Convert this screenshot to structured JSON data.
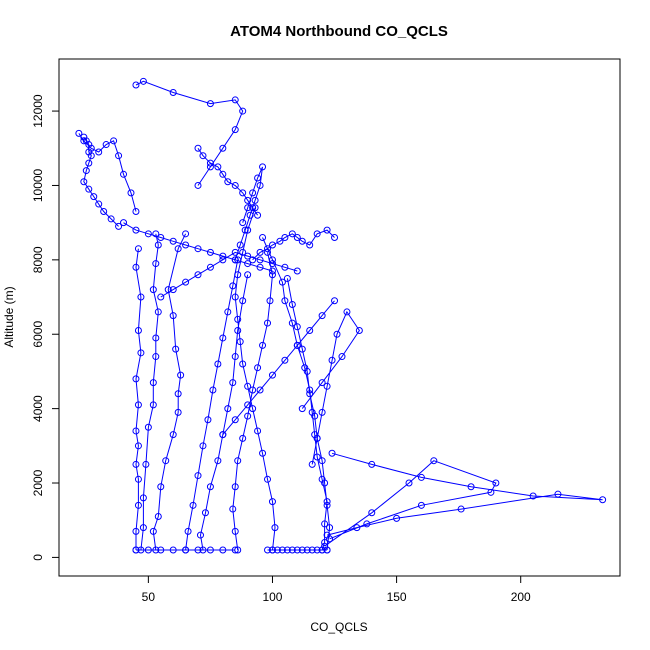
{
  "chart_data": {
    "type": "line",
    "title": "ATOM4 Northbound CO_QCLS",
    "xlabel": "CO_QCLS",
    "ylabel": "Altitude (m)",
    "xlim": [
      14,
      240
    ],
    "ylim": [
      -500,
      13400
    ],
    "xticks": [
      50,
      100,
      150,
      200
    ],
    "yticks": [
      0,
      2000,
      4000,
      6000,
      8000,
      10000,
      12000
    ],
    "grid": false,
    "series_style": "points connected by lines, open circles",
    "color": "#0000ff",
    "profiles": [
      {
        "x": [
          45,
          45,
          46,
          46,
          45,
          46,
          45,
          46,
          45,
          47,
          46,
          47,
          45,
          46
        ],
        "y": [
          200,
          700,
          1400,
          2100,
          2500,
          3000,
          3400,
          4100,
          4800,
          5500,
          6100,
          7000,
          7800,
          8300
        ]
      },
      {
        "x": [
          47,
          48,
          48,
          49,
          50,
          52,
          52,
          53,
          53,
          54,
          52,
          53,
          54,
          53
        ],
        "y": [
          200,
          800,
          1600,
          2500,
          3500,
          4100,
          4700,
          5400,
          5900,
          6600,
          7200,
          7900,
          8400,
          8700
        ]
      },
      {
        "x": [
          53,
          52,
          54,
          55,
          57,
          60,
          62,
          62,
          63,
          61,
          60,
          58,
          62,
          65
        ],
        "y": [
          200,
          700,
          1100,
          1900,
          2600,
          3300,
          3900,
          4400,
          4900,
          5600,
          6500,
          7200,
          8300,
          8700
        ]
      },
      {
        "x": [
          120,
          121,
          121,
          122,
          120,
          118,
          117,
          116,
          115,
          113,
          110,
          108,
          105,
          104,
          100,
          96
        ],
        "y": [
          200,
          400,
          900,
          1500,
          2100,
          2700,
          3300,
          3900,
          4500,
          5100,
          5700,
          6300,
          6900,
          7400,
          8000,
          8600
        ]
      },
      {
        "x": [
          122,
          123,
          122,
          121,
          120,
          118,
          117,
          115,
          114,
          112,
          110,
          108,
          106
        ],
        "y": [
          200,
          800,
          1400,
          2000,
          2600,
          3200,
          3800,
          4400,
          5000,
          5600,
          6200,
          6800,
          7500
        ]
      },
      {
        "x": [
          100,
          101,
          100,
          98,
          96,
          94,
          92,
          90,
          88,
          87,
          86,
          85,
          86,
          88,
          90,
          93
        ],
        "y": [
          200,
          800,
          1500,
          2100,
          2800,
          3400,
          4000,
          4600,
          5200,
          5800,
          6400,
          7000,
          7600,
          8200,
          8800,
          9400
        ]
      },
      {
        "x": [
          86,
          85,
          84,
          85,
          86,
          88,
          90,
          92,
          94,
          96,
          98,
          99,
          100,
          98
        ],
        "y": [
          200,
          700,
          1300,
          1900,
          2600,
          3200,
          3800,
          4500,
          5100,
          5700,
          6300,
          6900,
          7600,
          8200
        ]
      },
      {
        "x": [
          72,
          71,
          73,
          75,
          78,
          80,
          82,
          84,
          85,
          86,
          88,
          90
        ],
        "y": [
          200,
          600,
          1200,
          1900,
          2600,
          3300,
          4000,
          4700,
          5400,
          6100,
          6900,
          7600
        ]
      },
      {
        "x": [
          65,
          66,
          68,
          70,
          72,
          74,
          76,
          78,
          80,
          82,
          84,
          86
        ],
        "y": [
          200,
          700,
          1400,
          2200,
          3000,
          3700,
          4500,
          5200,
          5900,
          6600,
          7300,
          8000
        ]
      },
      {
        "x": [
          122,
          134,
          150,
          176,
          215,
          233,
          205,
          180,
          160,
          140,
          124
        ],
        "y": [
          600,
          800,
          1050,
          1300,
          1700,
          1550,
          1650,
          1900,
          2150,
          2500,
          2800
        ]
      },
      {
        "x": [
          121,
          140,
          155,
          165,
          190,
          188,
          160,
          138,
          123
        ],
        "y": [
          300,
          1200,
          2000,
          2600,
          2000,
          1750,
          1400,
          900,
          500
        ]
      },
      {
        "x": [
          116,
          118,
          120,
          122,
          124,
          126,
          130,
          135,
          128,
          120,
          112
        ],
        "y": [
          2500,
          3200,
          3900,
          4600,
          5300,
          6000,
          6600,
          6100,
          5400,
          4700,
          4000
        ]
      },
      {
        "x": [
          92,
          95,
          98,
          100,
          103,
          105,
          108,
          110,
          112,
          115,
          118,
          122,
          125
        ],
        "y": [
          8000,
          8200,
          8300,
          8400,
          8500,
          8600,
          8700,
          8600,
          8500,
          8400,
          8700,
          8800,
          8600
        ]
      },
      {
        "x": [
          88,
          90,
          92,
          94,
          96,
          95,
          93,
          91,
          89,
          87,
          85
        ],
        "y": [
          9000,
          9400,
          9800,
          10200,
          10500,
          10000,
          9600,
          9200,
          8800,
          8400,
          8000
        ]
      },
      {
        "x": [
          24,
          25,
          26,
          26,
          27,
          26,
          25,
          24,
          26,
          28,
          30,
          32,
          35,
          38
        ],
        "y": [
          11300,
          11200,
          11100,
          10900,
          10800,
          10600,
          10400,
          10100,
          9900,
          9700,
          9500,
          9300,
          9100,
          8900
        ]
      },
      {
        "x": [
          22,
          24,
          27,
          30,
          33,
          36,
          38,
          40,
          43,
          45
        ],
        "y": [
          11400,
          11200,
          11000,
          10900,
          11100,
          11200,
          10800,
          10300,
          9800,
          9300
        ]
      },
      {
        "x": [
          45,
          48,
          60,
          75,
          85,
          88,
          85,
          80,
          75,
          70
        ],
        "y": [
          12700,
          12800,
          12500,
          12200,
          12300,
          12000,
          11500,
          11000,
          10500,
          10000
        ]
      },
      {
        "x": [
          70,
          72,
          75,
          78,
          80,
          82,
          85,
          88,
          90,
          92,
          94
        ],
        "y": [
          11000,
          10800,
          10600,
          10500,
          10300,
          10100,
          10000,
          9800,
          9600,
          9400,
          9200
        ]
      },
      {
        "x": [
          40,
          45,
          50,
          55,
          60,
          65,
          70,
          75,
          80,
          85,
          90,
          95,
          100
        ],
        "y": [
          9000,
          8800,
          8700,
          8600,
          8500,
          8400,
          8300,
          8200,
          8100,
          8000,
          7900,
          7800,
          7700
        ]
      },
      {
        "x": [
          55,
          60,
          65,
          70,
          75,
          80,
          85,
          90,
          95,
          100,
          105,
          110
        ],
        "y": [
          7000,
          7200,
          7400,
          7600,
          7800,
          8000,
          8200,
          8100,
          8000,
          7900,
          7800,
          7700
        ]
      },
      {
        "x": [
          125,
          120,
          115,
          110,
          105,
          100,
          95,
          90,
          85,
          80
        ],
        "y": [
          6900,
          6500,
          6100,
          5700,
          5300,
          4900,
          4500,
          4100,
          3700,
          3300
        ]
      },
      {
        "x": [
          45,
          50,
          55,
          60,
          65,
          70,
          75,
          80,
          85
        ],
        "y": [
          200,
          200,
          200,
          200,
          200,
          200,
          200,
          200,
          200
        ]
      },
      {
        "x": [
          98,
          100,
          102,
          104,
          106,
          108,
          110,
          112,
          114,
          116,
          118,
          120,
          122
        ],
        "y": [
          200,
          200,
          200,
          200,
          200,
          200,
          200,
          200,
          200,
          200,
          200,
          200,
          200
        ]
      }
    ]
  }
}
